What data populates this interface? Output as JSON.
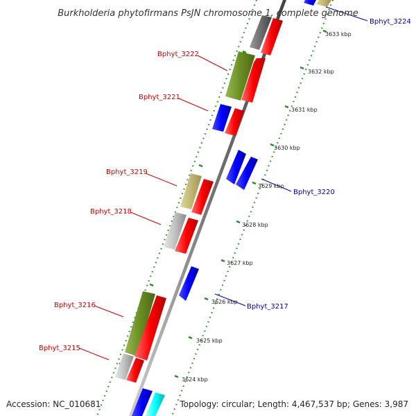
{
  "title": "Burkholderia phytofirmans PsJN chromosome 1, complete genome",
  "footer": {
    "accession": "Accession: NC_010681",
    "stats": "Topology: circular; Length: 4,467,537 bp; Genes: 3,987"
  },
  "ticks": [
    "3633 kbp",
    "3632 kbp",
    "3631 kbp",
    "3630 kbp",
    "3629 kbp",
    "3628 kbp",
    "3627 kbp",
    "3626 kbp",
    "3625 kbp",
    "3624 kbp"
  ],
  "gene_labels": {
    "bphyt_3224": "Bphyt_3224",
    "bphyt_3222": "Bphyt_3222",
    "bphyt_3221": "Bphyt_3221",
    "bphyt_3220": "Bphyt_3220",
    "bphyt_3219": "Bphyt_3219",
    "bphyt_3218": "Bphyt_3218",
    "bphyt_3217": "Bphyt_3217",
    "bphyt_3216": "Bphyt_3216",
    "bphyt_3215": "Bphyt_3215"
  },
  "colors": {
    "forward_label": "#cc0000",
    "reverse_label": "#0000aa",
    "cds_red": "#ff0000",
    "cds_blue": "#0000ff",
    "cog_olive": "#6b8e23",
    "cog_khaki": "#c2b773",
    "cog_gray": "#c0c0c0",
    "cog_dark": "#6e6e6e",
    "cog_cyan": "#00ffff",
    "ring_green": "#228b22"
  }
}
